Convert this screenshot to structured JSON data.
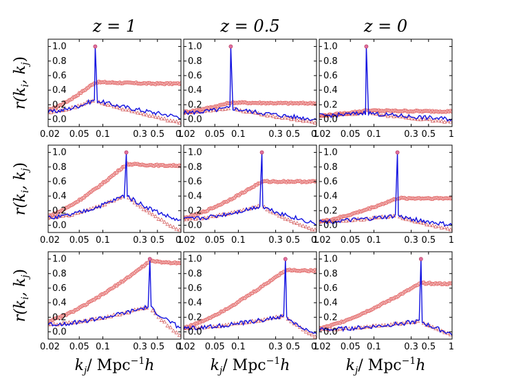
{
  "chart_data": {
    "type": "line",
    "layout": "3x3 grid of line plots",
    "column_titles": [
      "z = 1",
      "z = 0.5",
      "z = 0"
    ],
    "ylabel": "r(k_i, k_j)",
    "ylabel_parts": {
      "base": "r(k",
      "sub_i": "i",
      "sep": ", k",
      "sub_j": "j",
      "close": ")"
    },
    "xlabel": "k_j/  Mpc^-1 h",
    "xlabel_parts": {
      "k": "k",
      "sub": "j",
      "unit": "/   Mpc",
      "sup": "−1",
      "h": "h"
    },
    "xscale": "log",
    "xlim": [
      0.02,
      1.0
    ],
    "ylim": [
      -0.1,
      1.1
    ],
    "xticks": [
      0.02,
      0.05,
      0.1,
      0.3,
      0.5,
      1
    ],
    "xtick_labels": [
      "0.02",
      "0.05",
      "0.1",
      "0.3",
      "0.5",
      "1"
    ],
    "yticks": [
      0.0,
      0.2,
      0.4,
      0.6,
      0.8,
      1.0
    ],
    "ytick_labels": [
      "0.0",
      "0.2",
      "0.4",
      "0.6",
      "0.8",
      "1.0"
    ],
    "colors": {
      "line": "#1010e0",
      "circles": "#e06060",
      "circles_fill": "#f2b8b8",
      "triangles": "#d05050"
    },
    "rows_ki": [
      0.08,
      0.2,
      0.4
    ],
    "panels": [
      {
        "row": 0,
        "col": 0,
        "ki": 0.08,
        "circles_level": 0.49,
        "circles_start": 0.13,
        "circles_peak": 0.51,
        "line_base": 0.1,
        "line_peak": 0.27,
        "line_end": 0.03,
        "tri_end": -0.05
      },
      {
        "row": 0,
        "col": 1,
        "ki": 0.08,
        "circles_level": 0.22,
        "circles_start": 0.1,
        "circles_peak": 0.23,
        "line_base": 0.09,
        "line_peak": 0.16,
        "line_end": 0.0,
        "tri_end": -0.05
      },
      {
        "row": 0,
        "col": 2,
        "ki": 0.08,
        "circles_level": 0.11,
        "circles_start": 0.05,
        "circles_peak": 0.12,
        "line_base": 0.05,
        "line_peak": 0.09,
        "line_end": 0.0,
        "tri_end": -0.04
      },
      {
        "row": 1,
        "col": 0,
        "ki": 0.2,
        "circles_level": 0.82,
        "circles_start": 0.13,
        "circles_peak": 0.84,
        "line_base": 0.1,
        "line_peak": 0.42,
        "line_end": 0.05,
        "tri_end": -0.08
      },
      {
        "row": 1,
        "col": 1,
        "ki": 0.2,
        "circles_level": 0.6,
        "circles_start": 0.1,
        "circles_peak": 0.6,
        "line_base": 0.08,
        "line_peak": 0.27,
        "line_end": 0.02,
        "tri_end": -0.08
      },
      {
        "row": 1,
        "col": 2,
        "ki": 0.2,
        "circles_level": 0.37,
        "circles_start": 0.05,
        "circles_peak": 0.37,
        "line_base": 0.05,
        "line_peak": 0.13,
        "line_end": 0.0,
        "tri_end": -0.06
      },
      {
        "row": 2,
        "col": 0,
        "ki": 0.4,
        "circles_level": 0.95,
        "circles_start": 0.15,
        "circles_peak": 0.97,
        "line_base": 0.1,
        "line_peak": 0.35,
        "line_end": 0.05,
        "tri_end": -0.06
      },
      {
        "row": 2,
        "col": 1,
        "ki": 0.4,
        "circles_level": 0.84,
        "circles_start": 0.06,
        "circles_peak": 0.85,
        "line_base": 0.05,
        "line_peak": 0.22,
        "line_end": -0.05,
        "tri_end": -0.08
      },
      {
        "row": 2,
        "col": 2,
        "ki": 0.4,
        "circles_level": 0.66,
        "circles_start": 0.05,
        "circles_peak": 0.67,
        "line_base": 0.03,
        "line_peak": 0.15,
        "line_end": -0.03,
        "tri_end": -0.05
      }
    ]
  }
}
